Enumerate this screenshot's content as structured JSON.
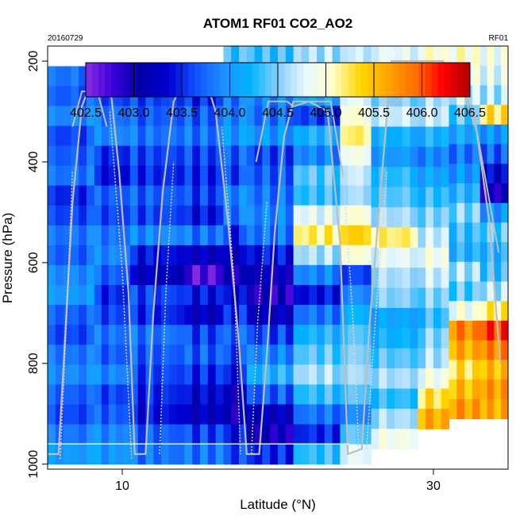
{
  "chart_data": {
    "type": "heatmap",
    "title": "ATOM1 RF01 CO2_AO2",
    "subtitle_left": "20160729",
    "subtitle_right": "RF01",
    "xlabel": "Latitude (°N)",
    "ylabel": "Pressure (hPa)",
    "xlim": [
      5.2,
      34.8
    ],
    "ylim": [
      1010,
      170
    ],
    "xticks": [
      10,
      30
    ],
    "xtick_labels": [
      "10",
      "30"
    ],
    "yticks": [
      200,
      400,
      600,
      800,
      1000
    ],
    "ytick_labels": [
      "200",
      "400",
      "600",
      "800",
      "1000"
    ],
    "colorbar": {
      "min": 402.5,
      "max": 406.5,
      "ticks": [
        402.5,
        403.0,
        403.5,
        404.0,
        404.5,
        405.0,
        405.5,
        406.0,
        406.5
      ],
      "tick_labels": [
        "402.5",
        "403.0",
        "403.5",
        "404.0",
        "404.5",
        "405.0",
        "405.5",
        "406.0",
        "406.5"
      ],
      "colors": [
        "#8a2be2",
        "#3a00d8",
        "#0000a8",
        "#0000d0",
        "#1050ff",
        "#1e90ff",
        "#00b4ff",
        "#87cefa",
        "#e8f8ff",
        "#ffffc8",
        "#ffd700",
        "#ffa500",
        "#ff7000",
        "#ff0000",
        "#b00000"
      ]
    },
    "grid": "none",
    "legend": "top (colorbar)",
    "cell_size": {
      "dlat": 0.5,
      "dp": 20
    },
    "columns": [
      {
        "lat_start": 5.2,
        "lat_end": 8.2,
        "p_top": 210,
        "p_bottom": 1000,
        "values": [
          403.8,
          403.7,
          403.9,
          403.6,
          403.7,
          403.8,
          403.5,
          403.6,
          403.8,
          403.7,
          403.9,
          404.0,
          403.7,
          403.6,
          403.8,
          403.9,
          403.7,
          403.6,
          403.8,
          404.0
        ]
      },
      {
        "lat_start": 8.2,
        "lat_end": 10.5,
        "p_top": 210,
        "p_bottom": 1000,
        "values": [
          403.7,
          403.6,
          403.8,
          403.9,
          403.5,
          403.4,
          403.7,
          403.6,
          403.8,
          403.9,
          403.7,
          403.5,
          403.6,
          403.8,
          403.7,
          403.9,
          403.6,
          403.7,
          403.9,
          404.0
        ]
      },
      {
        "lat_start": 10.5,
        "lat_end": 14.0,
        "p_top": 210,
        "p_bottom": 1000,
        "values": [
          403.7,
          403.6,
          403.7,
          403.8,
          403.6,
          403.5,
          403.7,
          403.6,
          403.9,
          403.4,
          403.2,
          403.6,
          403.5,
          403.8,
          403.7,
          403.6,
          403.5,
          403.4,
          403.7,
          403.8
        ]
      },
      {
        "lat_start": 14.0,
        "lat_end": 16.5,
        "p_top": 210,
        "p_bottom": 1000,
        "values": [
          403.6,
          403.5,
          403.7,
          403.8,
          403.6,
          403.5,
          403.6,
          403.4,
          403.8,
          403.2,
          402.7,
          403.4,
          403.2,
          403.6,
          403.7,
          403.5,
          403.3,
          403.2,
          403.6,
          403.8
        ]
      },
      {
        "lat_start": 16.5,
        "lat_end": 18.0,
        "p_top": 170,
        "p_bottom": 1000,
        "values": [
          404.3,
          404.0,
          403.8,
          403.9,
          404.0,
          403.7,
          403.6,
          403.9,
          403.8,
          403.5,
          403.2,
          403.0,
          403.3,
          403.5,
          403.7,
          403.6,
          403.4,
          403.1,
          403.0,
          403.4,
          403.6
        ]
      },
      {
        "lat_start": 18.0,
        "lat_end": 21.0,
        "p_top": 170,
        "p_bottom": 1000,
        "values": [
          404.3,
          404.2,
          403.9,
          403.8,
          404.0,
          403.6,
          403.7,
          403.8,
          403.9,
          403.8,
          403.4,
          403.1,
          402.9,
          403.2,
          403.6,
          403.9,
          404.2,
          403.7,
          403.2,
          403.0,
          403.5
        ]
      },
      {
        "lat_start": 21.0,
        "lat_end": 24.0,
        "p_top": 170,
        "p_bottom": 1000,
        "values": [
          404.6,
          404.4,
          404.1,
          403.6,
          404.2,
          403.9,
          404.4,
          404.3,
          404.8,
          405.2,
          404.6,
          403.9,
          403.4,
          403.8,
          404.2,
          404.4,
          404.6,
          404.3,
          403.8,
          403.5,
          404.3
        ]
      },
      {
        "lat_start": 24.0,
        "lat_end": 26.0,
        "p_top": 170,
        "p_bottom": 1000,
        "values": [
          404.7,
          404.5,
          404.8,
          405.0,
          405.2,
          404.9,
          404.7,
          404.6,
          405.0,
          405.4,
          405.0,
          403.6,
          403.9,
          404.2,
          404.4,
          404.5,
          404.6,
          404.4,
          403.9,
          404.4,
          404.8
        ]
      },
      {
        "lat_start": 26.0,
        "lat_end": 29.0,
        "p_top": 170,
        "p_bottom": 970,
        "values": [
          404.8,
          404.6,
          404.5,
          404.7,
          404.2,
          404.0,
          404.3,
          404.4,
          404.6,
          405.2,
          404.8,
          404.6,
          404.5,
          404.1,
          404.2,
          404.4,
          404.6,
          404.3,
          404.6,
          404.9
        ]
      },
      {
        "lat_start": 29.0,
        "lat_end": 31.0,
        "p_top": 170,
        "p_bottom": 930,
        "values": [
          405.0,
          404.8,
          404.6,
          404.7,
          404.2,
          403.9,
          404.1,
          404.3,
          404.5,
          404.7,
          404.9,
          404.7,
          404.5,
          404.3,
          404.5,
          404.6,
          404.9,
          405.3,
          405.6
        ]
      },
      {
        "lat_start": 31.0,
        "lat_end": 33.0,
        "p_top": 170,
        "p_bottom": 910,
        "values": [
          405.0,
          404.9,
          404.7,
          404.4,
          404.1,
          403.8,
          404.0,
          404.2,
          404.5,
          404.3,
          404.2,
          404.6,
          404.4,
          404.9,
          405.8,
          405.6,
          405.3,
          405.5,
          405.7
        ]
      },
      {
        "lat_start": 33.0,
        "lat_end": 34.8,
        "p_top": 170,
        "p_bottom": 910,
        "values": [
          404.9,
          404.8,
          404.6,
          405.3,
          404.0,
          403.7,
          403.3,
          403.0,
          404.0,
          404.4,
          404.2,
          404.3,
          404.6,
          405.2,
          406.1,
          405.8,
          405.5,
          405.7,
          405.6
        ]
      }
    ],
    "flight_track": [
      {
        "lat": 5.2,
        "p": 980
      },
      {
        "lat": 5.9,
        "p": 980
      },
      {
        "lat": 6.3,
        "p": 760
      },
      {
        "lat": 6.8,
        "p": 480
      },
      {
        "lat": 7.4,
        "p": 290
      },
      {
        "lat": 8.0,
        "p": 240
      },
      {
        "lat": 9.2,
        "p": 240
      },
      {
        "lat": 9.8,
        "p": 420
      },
      {
        "lat": 10.4,
        "p": 660
      },
      {
        "lat": 10.8,
        "p": 980
      },
      {
        "lat": 11.5,
        "p": 980
      },
      {
        "lat": 12.0,
        "p": 700
      },
      {
        "lat": 12.6,
        "p": 460
      },
      {
        "lat": 13.3,
        "p": 280
      },
      {
        "lat": 14.0,
        "p": 240
      },
      {
        "lat": 15.4,
        "p": 240
      },
      {
        "lat": 16.0,
        "p": 300
      },
      {
        "lat": 16.8,
        "p": 520
      },
      {
        "lat": 17.5,
        "p": 760
      },
      {
        "lat": 18.0,
        "p": 980
      },
      {
        "lat": 18.8,
        "p": 980
      },
      {
        "lat": 19.3,
        "p": 780
      },
      {
        "lat": 19.8,
        "p": 540
      },
      {
        "lat": 20.4,
        "p": 350
      },
      {
        "lat": 21.0,
        "p": 280
      },
      {
        "lat": 22.0,
        "p": 280
      },
      {
        "lat": 23.2,
        "p": 300
      },
      {
        "lat": 24.0,
        "p": 560
      },
      {
        "lat": 24.5,
        "p": 980
      },
      {
        "lat": 25.4,
        "p": 970
      },
      {
        "lat": 25.9,
        "p": 720
      },
      {
        "lat": 26.6,
        "p": 460
      },
      {
        "lat": 27.3,
        "p": 200
      },
      {
        "lat": 29.0,
        "p": 200
      },
      {
        "lat": 30.6,
        "p": 200
      },
      {
        "lat": 32.6,
        "p": 300
      },
      {
        "lat": 33.6,
        "p": 520
      },
      {
        "lat": 34.3,
        "p": 800
      }
    ],
    "flight_track_2": [
      {
        "lat": 6.8,
        "p": 330
      },
      {
        "lat": 7.4,
        "p": 260
      },
      {
        "lat": 8.4,
        "p": 260
      },
      {
        "lat": 9.0,
        "p": 330
      },
      {
        "lat": 18.6,
        "p": 400
      },
      {
        "lat": 19.4,
        "p": 280
      },
      {
        "lat": 20.6,
        "p": 280
      },
      {
        "lat": 21.0,
        "p": 290
      },
      {
        "lat": 22.0,
        "p": 280
      },
      {
        "lat": 23.4,
        "p": 280
      },
      {
        "lat": 24.2,
        "p": 430
      },
      {
        "lat": 27.3,
        "p": 290
      },
      {
        "lat": 28.0,
        "p": 270
      },
      {
        "lat": 30.6,
        "p": 270
      },
      {
        "lat": 31.2,
        "p": 270
      },
      {
        "lat": 32.1,
        "p": 280
      },
      {
        "lat": 32.8,
        "p": 340
      },
      {
        "lat": 33.5,
        "p": 460
      },
      {
        "lat": 34.2,
        "p": 580
      }
    ],
    "profile_lines": [
      [
        {
          "lat": 6.0,
          "p": 990
        },
        {
          "lat": 6.4,
          "p": 720
        },
        {
          "lat": 6.8,
          "p": 420
        }
      ],
      [
        {
          "lat": 9.2,
          "p": 300
        },
        {
          "lat": 10.0,
          "p": 620
        },
        {
          "lat": 10.6,
          "p": 990
        }
      ],
      [
        {
          "lat": 12.4,
          "p": 980
        },
        {
          "lat": 12.8,
          "p": 660
        },
        {
          "lat": 13.3,
          "p": 400
        }
      ],
      [
        {
          "lat": 16.4,
          "p": 330
        },
        {
          "lat": 17.2,
          "p": 640
        },
        {
          "lat": 17.6,
          "p": 980
        }
      ],
      [
        {
          "lat": 18.3,
          "p": 980
        },
        {
          "lat": 18.7,
          "p": 720
        },
        {
          "lat": 19.3,
          "p": 480
        }
      ],
      [
        {
          "lat": 24.2,
          "p": 420
        },
        {
          "lat": 24.8,
          "p": 700
        },
        {
          "lat": 25.2,
          "p": 970
        }
      ],
      [
        {
          "lat": 25.7,
          "p": 970
        },
        {
          "lat": 26.3,
          "p": 700
        },
        {
          "lat": 27.0,
          "p": 420
        }
      ]
    ]
  }
}
